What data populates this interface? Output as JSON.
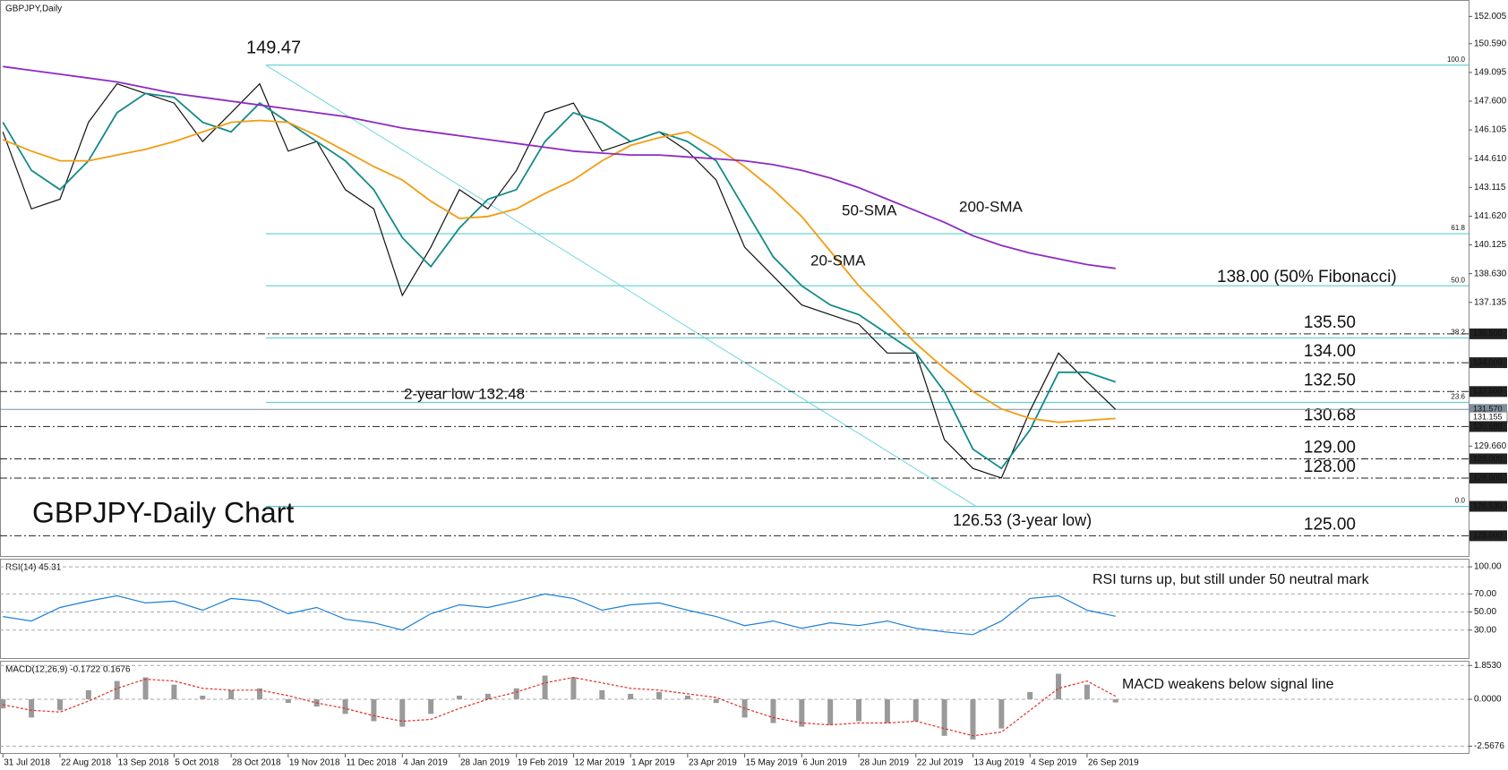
{
  "chart_data": [
    {
      "type": "line",
      "title": "GBPJPY,Daily",
      "ylim": [
        123.9,
        152.86
      ],
      "yticks": [
        {
          "value": 152.005,
          "label": "152.005"
        },
        {
          "value": 150.59,
          "label": "150.590"
        },
        {
          "value": 149.095,
          "label": "149.095"
        },
        {
          "value": 147.6,
          "label": "147.600"
        },
        {
          "value": 146.105,
          "label": "146.105"
        },
        {
          "value": 144.61,
          "label": "144.610"
        },
        {
          "value": 143.115,
          "label": "143.115"
        },
        {
          "value": 141.62,
          "label": "141.620"
        },
        {
          "value": 140.125,
          "label": "140.125"
        },
        {
          "value": 138.63,
          "label": "138.630"
        },
        {
          "value": 137.135,
          "label": "137.135"
        },
        {
          "value": 129.66,
          "label": "129.660"
        }
      ],
      "boxed_ticks": [
        {
          "value": 135.5,
          "label": "135.500",
          "color": "#222"
        },
        {
          "value": 134,
          "label": "134.000",
          "color": "#222"
        },
        {
          "value": 132.5,
          "label": "132.500",
          "color": "#222"
        },
        {
          "value": 131.57,
          "label": "131.570",
          "color": "#7d8ea0"
        },
        {
          "value": 131.155,
          "label": "131.155",
          "color": "#ffffff"
        },
        {
          "value": 130.68,
          "label": "130.680",
          "color": "#222"
        },
        {
          "value": 129,
          "label": "129.000",
          "color": "#222"
        },
        {
          "value": 128,
          "label": "128.000",
          "color": "#222"
        },
        {
          "value": 126.53,
          "label": "126.530",
          "color": "#222"
        },
        {
          "value": 125,
          "label": "125.000",
          "color": "#222"
        }
      ],
      "levels": [
        {
          "value": 135.5,
          "label": "135.50",
          "color": "#2233dd"
        },
        {
          "value": 134,
          "label": "134.00",
          "color": "#2233dd"
        },
        {
          "value": 132.5,
          "label": "132.50",
          "color": "#2233dd"
        },
        {
          "value": 130.68,
          "label": "130.68",
          "color": "#e0302a"
        },
        {
          "value": 129,
          "label": "129.00",
          "color": "#e0302a"
        },
        {
          "value": 128,
          "label": "128.00",
          "color": "#e0302a"
        },
        {
          "value": 125,
          "label": "125.00",
          "color": "#e0302a"
        }
      ],
      "fibonacci": [
        {
          "value": 149.47,
          "label": "100.0"
        },
        {
          "value": 140.71,
          "label": "61.8"
        },
        {
          "value": 138.0,
          "label": "50.0"
        },
        {
          "value": 135.29,
          "label": "38.2"
        },
        {
          "value": 131.94,
          "label": "23.6"
        },
        {
          "value": 126.53,
          "label": "0.0"
        }
      ],
      "series": [
        {
          "color": "#111111",
          "values": [
            146.0,
            142.0,
            142.5,
            146.5,
            148.5,
            148.0,
            147.5,
            145.5,
            147.0,
            148.5,
            145.0,
            145.5,
            143.0,
            142.0,
            137.5,
            140.0,
            143.0,
            142.0,
            144.0,
            147.0,
            147.5,
            145.0,
            145.5,
            146.0,
            145.0,
            143.5,
            140.0,
            138.5,
            137.0,
            136.5,
            136.0,
            134.5,
            134.5,
            130.0,
            128.5,
            128.0,
            131.5,
            134.5,
            133.0,
            131.57
          ]
        },
        {
          "name": "20-SMA",
          "color": "#148a8a",
          "values": [
            146.5,
            144.0,
            143.0,
            144.5,
            147.0,
            148.0,
            147.8,
            146.5,
            146.0,
            147.5,
            146.5,
            145.5,
            144.5,
            143.0,
            140.5,
            139.0,
            141.0,
            142.5,
            143.0,
            145.5,
            147.0,
            146.5,
            145.5,
            146.0,
            145.5,
            144.5,
            142.0,
            139.5,
            138.0,
            137.0,
            136.5,
            135.5,
            134.5,
            132.5,
            129.5,
            128.5,
            130.5,
            133.5,
            133.5,
            133.0
          ]
        },
        {
          "name": "50-SMA",
          "color": "#f39c12",
          "values": [
            145.6,
            145.0,
            144.5,
            144.5,
            144.8,
            145.1,
            145.5,
            146.0,
            146.5,
            146.6,
            146.5,
            145.8,
            145.0,
            144.2,
            143.5,
            142.4,
            141.5,
            141.6,
            142.0,
            142.8,
            143.5,
            144.5,
            145.3,
            145.7,
            146.0,
            145.2,
            144.2,
            143.0,
            141.6,
            139.8,
            138.0,
            136.5,
            135.0,
            133.7,
            132.5,
            131.6,
            131.1,
            130.9,
            131.0,
            131.1
          ]
        },
        {
          "name": "200-SMA",
          "color": "#8e2bc2",
          "values": [
            149.4,
            149.2,
            149.0,
            148.8,
            148.6,
            148.3,
            148.0,
            147.8,
            147.6,
            147.4,
            147.2,
            147.0,
            146.8,
            146.5,
            146.2,
            146.0,
            145.8,
            145.6,
            145.4,
            145.2,
            145.0,
            144.9,
            144.8,
            144.8,
            144.7,
            144.6,
            144.5,
            144.3,
            144.0,
            143.6,
            143.1,
            142.5,
            141.9,
            141.3,
            140.6,
            140.1,
            139.7,
            139.4,
            139.1,
            138.9
          ]
        }
      ],
      "annotations": [
        {
          "text": "149.47",
          "color": "#111111"
        },
        {
          "text": "2-year low 132.48",
          "color": "#111111"
        },
        {
          "text": "GBPJPY-Daily Chart",
          "color": "#111111"
        },
        {
          "text": "126.53 (3-year low)",
          "color": "#111111"
        },
        {
          "text": "138.00 (50% Fibonacci)",
          "color": "#2233dd"
        }
      ]
    },
    {
      "type": "line",
      "title": "RSI(14) 45.31",
      "ylim": [
        -2,
        109
      ],
      "yticks": [
        {
          "value": 100,
          "label": "100.00"
        },
        {
          "value": 70,
          "label": "70.00"
        },
        {
          "value": 50,
          "label": "50.00"
        },
        {
          "value": 30,
          "label": "30.00"
        }
      ],
      "series": [
        {
          "color": "#1e7fd8",
          "values": [
            45,
            40,
            55,
            62,
            68,
            60,
            62,
            52,
            65,
            62,
            48,
            55,
            42,
            38,
            30,
            48,
            58,
            55,
            62,
            70,
            65,
            52,
            58,
            60,
            52,
            45,
            35,
            40,
            32,
            38,
            35,
            40,
            32,
            28,
            25,
            40,
            65,
            68,
            52,
            45.31
          ]
        }
      ],
      "annotation": "RSI turns up, but still under 50 neutral mark"
    },
    {
      "type": "bar",
      "title": "MACD(12,26,9) -0.1722 0.1676",
      "ylim": [
        -2.99,
        2.11
      ],
      "yticks": [
        {
          "value": 1.853,
          "label": "1.8530"
        },
        {
          "value": 0,
          "label": "0.0000"
        },
        {
          "value": -2.5676,
          "label": "-2.5676"
        }
      ],
      "categories": [
        "31 Jul 2018",
        null,
        "22 Aug 2018",
        null,
        "13 Sep 2018",
        null,
        "5 Oct 2018",
        null,
        "28 Oct 2018",
        null,
        "19 Nov 2018",
        null,
        "11 Dec 2018",
        null,
        "4 Jan 2019",
        null,
        "28 Jan 2019",
        null,
        "19 Feb 2019",
        null,
        "12 Mar 2019",
        null,
        "1 Apr 2019",
        null,
        "23 Apr 2019",
        null,
        "15 May 2019",
        null,
        "6 Jun 2019",
        null,
        "28 Jun 2019",
        null,
        "22 Jul 2019",
        null,
        "13 Aug 2019",
        null,
        "4 Sep 2019",
        null,
        "26 Sep 2019",
        null
      ],
      "series": [
        {
          "color": "#9a9a9a",
          "values": [
            -0.5,
            -1.0,
            -0.6,
            0.5,
            1.0,
            1.2,
            0.8,
            0.2,
            0.5,
            0.6,
            -0.2,
            -0.4,
            -0.8,
            -1.2,
            -1.5,
            -0.8,
            0.2,
            0.3,
            0.6,
            1.3,
            1.2,
            0.5,
            0.3,
            0.4,
            0.2,
            -0.2,
            -1.0,
            -1.3,
            -1.5,
            -1.4,
            -1.2,
            -1.3,
            -1.2,
            -2.0,
            -2.2,
            -1.6,
            0.4,
            1.4,
            0.8,
            -0.1722
          ]
        },
        {
          "color": "#e0302a",
          "dashed": true,
          "values": [
            -0.3,
            -0.6,
            -0.7,
            -0.1,
            0.6,
            1.1,
            1.0,
            0.6,
            0.5,
            0.5,
            0.2,
            -0.2,
            -0.5,
            -0.9,
            -1.2,
            -1.1,
            -0.5,
            0.0,
            0.4,
            0.9,
            1.2,
            0.9,
            0.6,
            0.5,
            0.3,
            0.1,
            -0.5,
            -1.0,
            -1.3,
            -1.4,
            -1.3,
            -1.3,
            -1.2,
            -1.6,
            -2.0,
            -1.8,
            -0.6,
            0.6,
            1.0,
            0.1676
          ]
        }
      ],
      "annotation": "MACD weakens below signal line"
    }
  ]
}
